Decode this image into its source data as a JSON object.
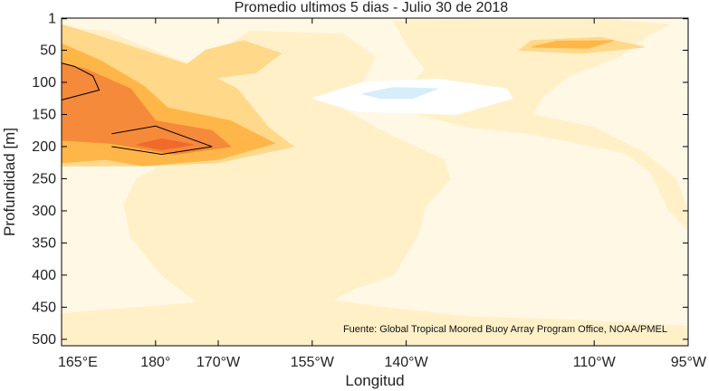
{
  "chart_data": {
    "type": "heatmap",
    "subtype": "filled-contour",
    "title": "Promedio ultimos 5 dias - Julio 30 de 2018",
    "xlabel": "Longitud",
    "ylabel": "Profundidad [m]",
    "y_reversed": true,
    "xlim": [
      165,
      265
    ],
    "ylim": [
      0,
      510
    ],
    "x_ticks": [
      {
        "value": 165,
        "label": "165°E"
      },
      {
        "value": 180,
        "label": "180°"
      },
      {
        "value": 190,
        "label": "170°W"
      },
      {
        "value": 205,
        "label": "155°W"
      },
      {
        "value": 220,
        "label": "140°W"
      },
      {
        "value": 250,
        "label": "110°W"
      },
      {
        "value": 265,
        "label": "95°W"
      }
    ],
    "y_ticks": [
      1,
      50,
      100,
      150,
      200,
      250,
      300,
      350,
      400,
      450,
      500
    ],
    "annotation": "Fuente: Global Tropical Moored Buoy Array Program Office, NOAA/PMEL",
    "colors": {
      "background_level": "#fff8e5",
      "level_1": "#fff0c8",
      "level_2": "#ffd88a",
      "level_3": "#ffb648",
      "level_4": "#f58a3a",
      "level_5": "#f06a2c",
      "negative_1": "#ffffff",
      "negative_2": "#d6eefa",
      "contour_line": "#000000"
    },
    "regions": [
      {
        "level": "level_1",
        "points": [
          [
            165,
            15
          ],
          [
            172,
            20
          ],
          [
            177,
            40
          ],
          [
            185,
            70
          ],
          [
            192,
            40
          ],
          [
            195,
            20
          ],
          [
            210,
            25
          ],
          [
            215,
            60
          ],
          [
            213,
            100
          ],
          [
            208,
            130
          ],
          [
            215,
            170
          ],
          [
            218,
            185
          ],
          [
            226,
            220
          ],
          [
            227,
            250
          ],
          [
            223,
            295
          ],
          [
            222,
            335
          ],
          [
            218,
            400
          ],
          [
            212,
            420
          ],
          [
            206,
            450
          ],
          [
            204,
            500
          ],
          [
            196,
            510
          ],
          [
            189,
            460
          ],
          [
            181,
            400
          ],
          [
            176,
            340
          ],
          [
            175,
            290
          ],
          [
            177,
            250
          ],
          [
            181,
            230
          ],
          [
            165,
            230
          ]
        ]
      },
      {
        "level": "level_1",
        "points": [
          [
            218,
            5
          ],
          [
            232,
            2
          ],
          [
            252,
            2
          ],
          [
            262,
            10
          ],
          [
            258,
            30
          ],
          [
            254,
            60
          ],
          [
            246,
            90
          ],
          [
            242,
            120
          ],
          [
            240,
            150
          ],
          [
            250,
            170
          ],
          [
            258,
            210
          ],
          [
            263,
            250
          ],
          [
            265,
            300
          ],
          [
            265,
            330
          ],
          [
            262,
            300
          ],
          [
            259,
            240
          ],
          [
            255,
            210
          ],
          [
            240,
            180
          ],
          [
            230,
            170
          ],
          [
            222,
            150
          ],
          [
            220,
            110
          ],
          [
            223,
            80
          ],
          [
            220,
            40
          ]
        ]
      },
      {
        "level": "level_1",
        "points": [
          [
            244,
            5
          ],
          [
            255,
            15
          ],
          [
            258,
            35
          ],
          [
            250,
            45
          ],
          [
            238,
            45
          ],
          [
            236,
            25
          ]
        ]
      },
      {
        "level": "level_1",
        "points": [
          [
            190,
            440
          ],
          [
            205,
            435
          ],
          [
            216,
            450
          ],
          [
            230,
            465
          ],
          [
            247,
            470
          ],
          [
            265,
            480
          ],
          [
            265,
            510
          ],
          [
            165,
            510
          ],
          [
            165,
            460
          ],
          [
            178,
            450
          ]
        ]
      },
      {
        "level": "level_2",
        "points": [
          [
            165,
            10
          ],
          [
            170,
            25
          ],
          [
            178,
            50
          ],
          [
            186,
            75
          ],
          [
            193,
            110
          ],
          [
            198,
            170
          ],
          [
            202,
            200
          ],
          [
            190,
            225
          ],
          [
            178,
            230
          ],
          [
            165,
            230
          ]
        ]
      },
      {
        "level": "level_2",
        "points": [
          [
            184,
            80
          ],
          [
            188,
            50
          ],
          [
            194,
            35
          ],
          [
            200,
            55
          ],
          [
            196,
            85
          ],
          [
            188,
            95
          ]
        ]
      },
      {
        "level": "level_2",
        "points": [
          [
            238,
            50
          ],
          [
            240,
            35
          ],
          [
            251,
            30
          ],
          [
            258,
            45
          ],
          [
            248,
            55
          ]
        ]
      },
      {
        "level": "level_3",
        "points": [
          [
            165,
            40
          ],
          [
            171,
            65
          ],
          [
            178,
            105
          ],
          [
            182,
            140
          ],
          [
            192,
            160
          ],
          [
            199,
            195
          ],
          [
            190,
            220
          ],
          [
            178,
            230
          ],
          [
            172,
            220
          ],
          [
            165,
            225
          ]
        ]
      },
      {
        "level": "level_3",
        "points": [
          [
            240,
            45
          ],
          [
            244,
            36
          ],
          [
            253,
            35
          ],
          [
            249,
            47
          ]
        ]
      },
      {
        "level": "level_4",
        "points": [
          [
            165,
            70
          ],
          [
            169,
            80
          ],
          [
            176,
            110
          ],
          [
            180,
            160
          ],
          [
            189,
            175
          ],
          [
            192,
            200
          ],
          [
            183,
            212
          ],
          [
            173,
            195
          ],
          [
            165,
            190
          ]
        ]
      },
      {
        "level": "level_5",
        "points": [
          [
            177,
            197
          ],
          [
            181,
            188
          ],
          [
            186,
            197
          ],
          [
            181,
            205
          ]
        ]
      },
      {
        "level": "negative_1",
        "points": [
          [
            205,
            125
          ],
          [
            213,
            100
          ],
          [
            225,
            95
          ],
          [
            236,
            110
          ],
          [
            237,
            125
          ],
          [
            228,
            150
          ],
          [
            212,
            145
          ]
        ]
      },
      {
        "level": "negative_2",
        "points": [
          [
            213,
            118
          ],
          [
            218,
            108
          ],
          [
            225,
            110
          ],
          [
            221,
            125
          ],
          [
            216,
            125
          ]
        ]
      }
    ],
    "contours": [
      {
        "points": [
          [
            165,
            70
          ],
          [
            167,
            75
          ],
          [
            170,
            90
          ],
          [
            171,
            112
          ],
          [
            164,
            130
          ]
        ]
      },
      {
        "points": [
          [
            173,
            180
          ],
          [
            180,
            168
          ],
          [
            189,
            200
          ],
          [
            181,
            212
          ],
          [
            173,
            200
          ]
        ]
      }
    ]
  }
}
